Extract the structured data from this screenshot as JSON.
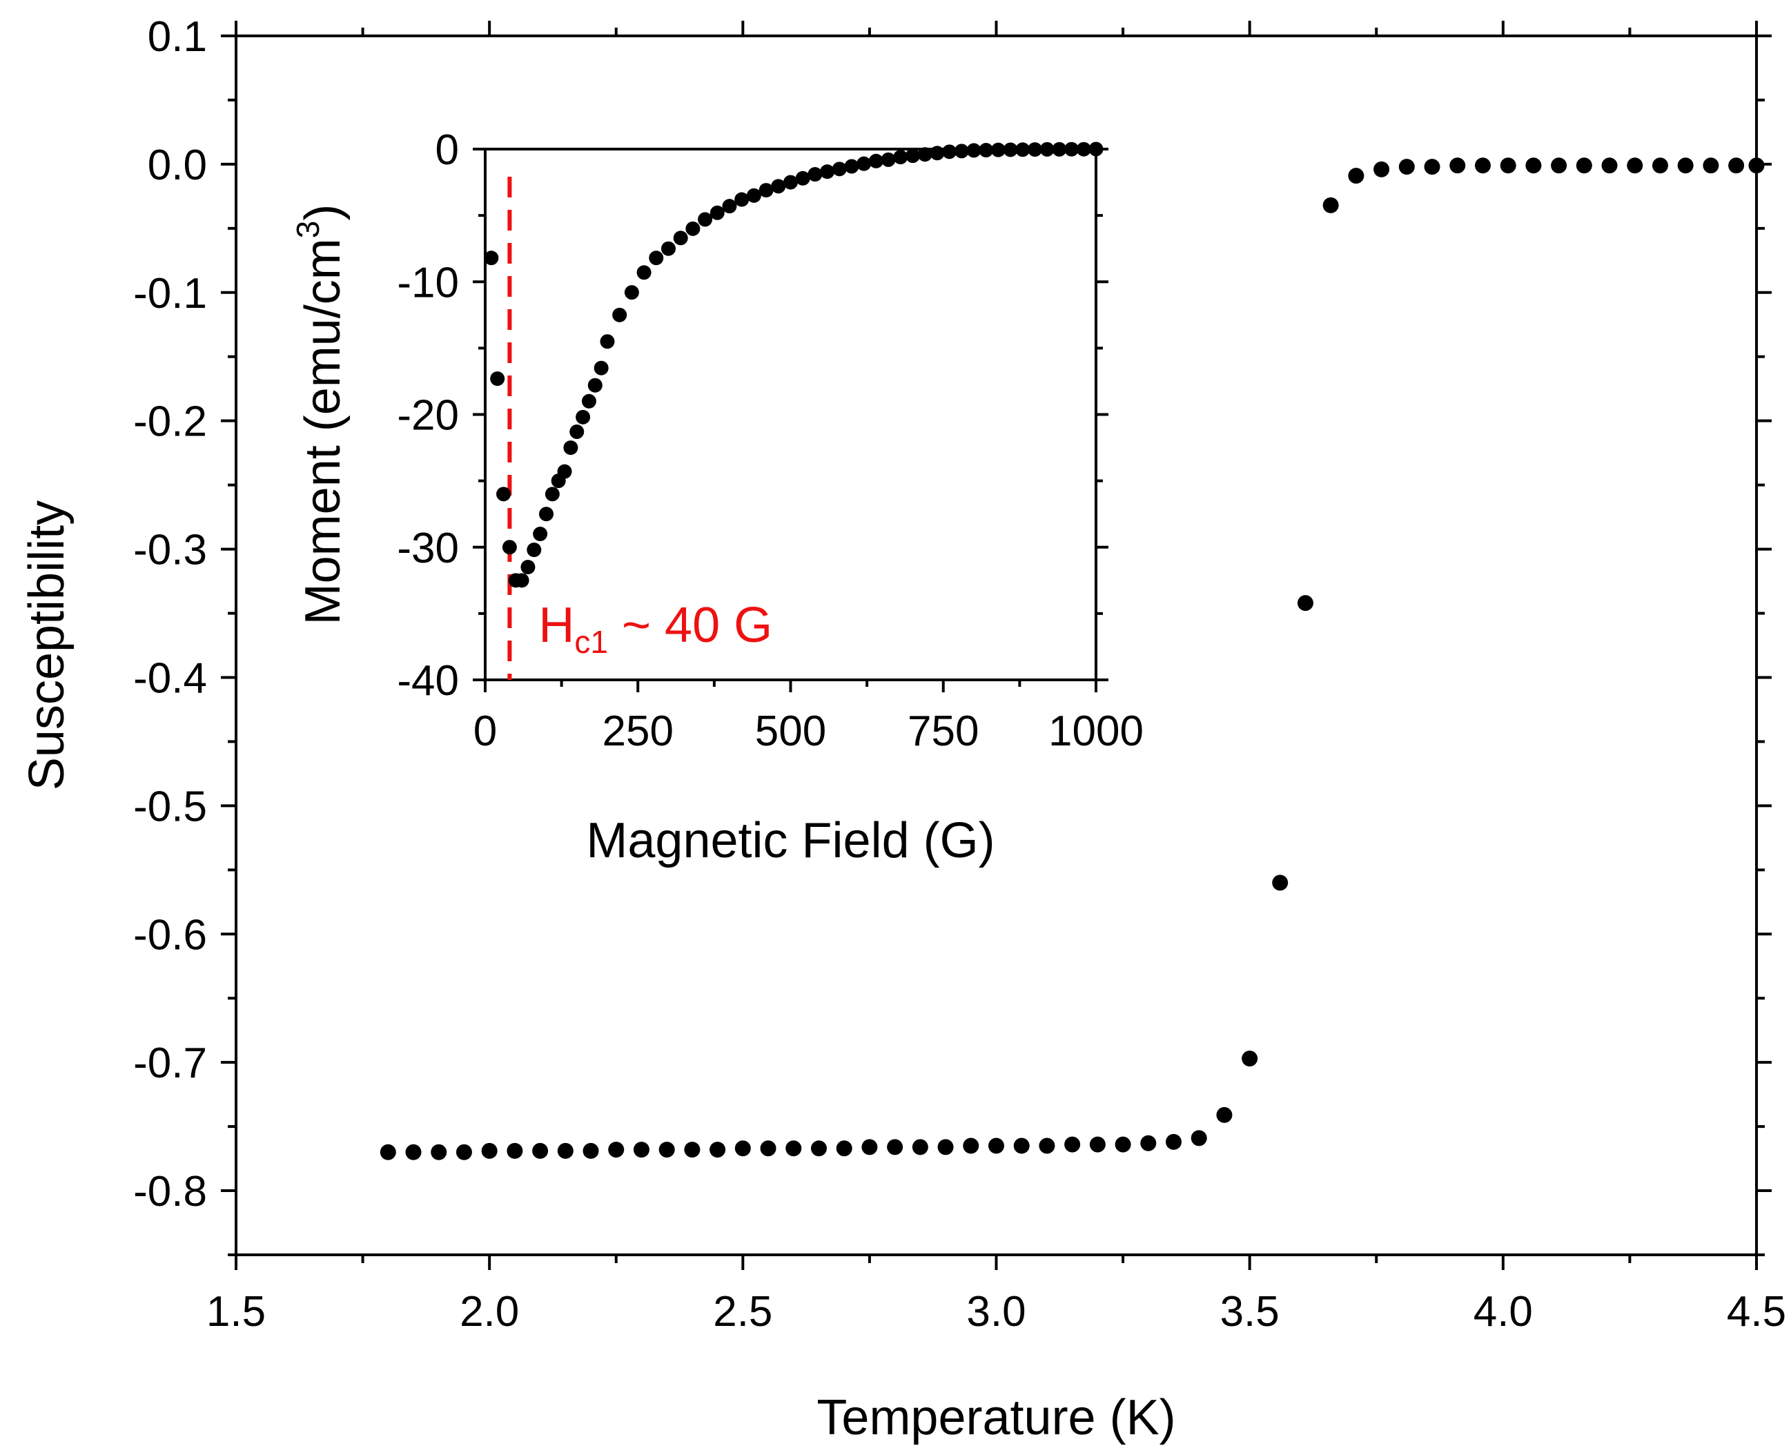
{
  "chart_data": [
    {
      "type": "scatter",
      "role": "main",
      "title": "",
      "xlabel": "Temperature (K)",
      "ylabel": "Susceptibility",
      "xlim": [
        1.5,
        4.5
      ],
      "ylim": [
        -0.85,
        0.1
      ],
      "xticks": [
        1.5,
        2.0,
        2.5,
        3.0,
        3.5,
        4.0,
        4.5
      ],
      "xtick_labels": [
        "1.5",
        "2.0",
        "2.5",
        "3.0",
        "3.5",
        "4.0",
        "4.5"
      ],
      "yticks": [
        0.1,
        0.0,
        -0.1,
        -0.2,
        -0.3,
        -0.4,
        -0.5,
        -0.6,
        -0.7,
        -0.8
      ],
      "ytick_labels": [
        "0.1",
        "0.0",
        "-0.1",
        "-0.2",
        "-0.3",
        "-0.4",
        "-0.5",
        "-0.6",
        "-0.7",
        "-0.8"
      ],
      "grid": false,
      "series": [
        {
          "name": "susceptibility",
          "color": "#000000",
          "x": [
            1.8,
            1.85,
            1.9,
            1.95,
            2.0,
            2.05,
            2.1,
            2.15,
            2.2,
            2.25,
            2.3,
            2.35,
            2.4,
            2.45,
            2.5,
            2.55,
            2.6,
            2.65,
            2.7,
            2.75,
            2.8,
            2.85,
            2.9,
            2.95,
            3.0,
            3.05,
            3.1,
            3.15,
            3.2,
            3.25,
            3.3,
            3.35,
            3.4,
            3.45,
            3.5,
            3.56,
            3.61,
            3.66,
            3.71,
            3.76,
            3.81,
            3.86,
            3.91,
            3.96,
            4.01,
            4.06,
            4.11,
            4.16,
            4.21,
            4.26,
            4.31,
            4.36,
            4.41,
            4.46,
            4.5
          ],
          "y": [
            -0.77,
            -0.77,
            -0.77,
            -0.77,
            -0.769,
            -0.769,
            -0.769,
            -0.769,
            -0.769,
            -0.768,
            -0.768,
            -0.768,
            -0.768,
            -0.768,
            -0.767,
            -0.767,
            -0.767,
            -0.767,
            -0.767,
            -0.766,
            -0.766,
            -0.766,
            -0.766,
            -0.765,
            -0.765,
            -0.765,
            -0.765,
            -0.764,
            -0.764,
            -0.764,
            -0.763,
            -0.762,
            -0.759,
            -0.741,
            -0.697,
            -0.56,
            -0.342,
            -0.032,
            -0.009,
            -0.004,
            -0.002,
            -0.002,
            -0.001,
            -0.001,
            -0.001,
            -0.001,
            -0.001,
            -0.001,
            -0.001,
            -0.001,
            -0.001,
            -0.001,
            -0.001,
            -0.001,
            -0.001
          ]
        }
      ]
    },
    {
      "type": "scatter",
      "role": "inset",
      "title": "",
      "xlabel": "Magnetic Field (G)",
      "ylabel_main": "Moment (emu/cm",
      "ylabel_sup": "3",
      "ylabel_close": ")",
      "xlim": [
        0,
        1000
      ],
      "ylim": [
        -40,
        0
      ],
      "xticks": [
        0,
        250,
        500,
        750,
        1000
      ],
      "xtick_labels": [
        "0",
        "250",
        "500",
        "750",
        "1000"
      ],
      "yticks": [
        0,
        -10,
        -20,
        -30,
        -40
      ],
      "ytick_labels": [
        "0",
        "-10",
        "-20",
        "-30",
        "-40"
      ],
      "grid": false,
      "annotation": {
        "main": "H",
        "sub": "c1",
        "rest": " ~ 40 G",
        "color": "#ee1111",
        "line_x": 40
      },
      "series": [
        {
          "name": "moment",
          "color": "#000000",
          "x": [
            10,
            20,
            30,
            40,
            50,
            60,
            70,
            80,
            90,
            100,
            110,
            120,
            130,
            140,
            150,
            160,
            170,
            180,
            190,
            200,
            220,
            240,
            260,
            280,
            300,
            320,
            340,
            360,
            380,
            400,
            420,
            440,
            460,
            480,
            500,
            520,
            540,
            560,
            580,
            600,
            620,
            640,
            660,
            680,
            700,
            720,
            740,
            760,
            780,
            800,
            820,
            840,
            860,
            880,
            900,
            920,
            940,
            960,
            980,
            1000
          ],
          "y": [
            -8.2,
            -17.3,
            -26.0,
            -30.0,
            -32.5,
            -32.5,
            -31.5,
            -30.2,
            -29.0,
            -27.5,
            -26.0,
            -25.0,
            -24.3,
            -22.5,
            -21.3,
            -20.2,
            -19.0,
            -17.8,
            -16.5,
            -14.5,
            -12.5,
            -10.8,
            -9.3,
            -8.2,
            -7.5,
            -6.7,
            -6.0,
            -5.3,
            -4.8,
            -4.3,
            -3.8,
            -3.5,
            -3.1,
            -2.8,
            -2.5,
            -2.2,
            -1.9,
            -1.7,
            -1.5,
            -1.3,
            -1.1,
            -0.9,
            -0.8,
            -0.6,
            -0.5,
            -0.4,
            -0.3,
            -0.2,
            -0.15,
            -0.1,
            -0.08,
            -0.06,
            -0.05,
            -0.04,
            -0.03,
            -0.02,
            -0.02,
            -0.01,
            -0.01,
            0.0
          ]
        }
      ]
    }
  ]
}
